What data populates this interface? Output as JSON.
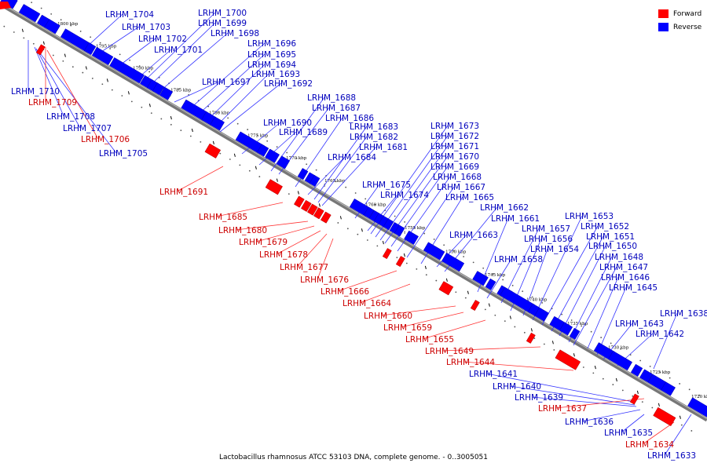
{
  "title": "Lactobacillus rhamnosus ATCC 53103 DNA, complete genome. - 0..3005051",
  "legend": {
    "forward_label": "Forward",
    "reverse_label": "Reverse",
    "forward_color": "#ff0000",
    "reverse_color": "#0000ff"
  },
  "colors": {
    "forward": "#ff0000",
    "forward_line": "#ff3333",
    "forward_text": "#cc0000",
    "reverse": "#0000ff",
    "reverse_line": "#3333ff",
    "reverse_text": "#0000bb",
    "axis": "#777777"
  },
  "scale": {
    "unit": "kbp",
    "range_kbp": [
      1720,
      1800
    ],
    "ticks": [
      "1800 kbp",
      "1795 kbp",
      "1790 kbp",
      "1785 kbp",
      "1780 kbp",
      "1775 kbp",
      "1770 kbp",
      "1765 kbp",
      "1760 kbp",
      "1755 kbp",
      "1750 kbp",
      "1745 kbp",
      "1740 kbp",
      "1735 kbp",
      "1730 kbp",
      "1725 kbp",
      "1720 kbp"
    ]
  },
  "genes_reverse": [
    "LRHM_1710",
    "LRHM_1708",
    "LRHM_1707",
    "LRHM_1705",
    "LRHM_1704",
    "LRHM_1703",
    "LRHM_1702",
    "LRHM_1701",
    "LRHM_1700",
    "LRHM_1699",
    "LRHM_1698",
    "LRHM_1697",
    "LRHM_1696",
    "LRHM_1695",
    "LRHM_1694",
    "LRHM_1693",
    "LRHM_1692",
    "LRHM_1690",
    "LRHM_1689",
    "LRHM_1688",
    "LRHM_1687",
    "LRHM_1686",
    "LRHM_1684",
    "LRHM_1683",
    "LRHM_1682",
    "LRHM_1681",
    "LRHM_1675",
    "LRHM_1674",
    "LRHM_1673",
    "LRHM_1672",
    "LRHM_1671",
    "LRHM_1670",
    "LRHM_1669",
    "LRHM_1668",
    "LRHM_1667",
    "LRHM_1665",
    "LRHM_1663",
    "LRHM_1662",
    "LRHM_1661",
    "LRHM_1658",
    "LRHM_1657",
    "LRHM_1656",
    "LRHM_1654",
    "LRHM_1653",
    "LRHM_1652",
    "LRHM_1651",
    "LRHM_1650",
    "LRHM_1648",
    "LRHM_1647",
    "LRHM_1646",
    "LRHM_1645",
    "LRHM_1643",
    "LRHM_1642",
    "LRHM_1641",
    "LRHM_1640",
    "LRHM_1639",
    "LRHM_1638",
    "LRHM_1636",
    "LRHM_1635",
    "LRHM_1633"
  ],
  "genes_forward": [
    "LRHM_1709",
    "LRHM_1706",
    "LRHM_1691",
    "LRHM_1685",
    "LRHM_1680",
    "LRHM_1679",
    "LRHM_1678",
    "LRHM_1677",
    "LRHM_1676",
    "LRHM_1666",
    "LRHM_1664",
    "LRHM_1660",
    "LRHM_1659",
    "LRHM_1655",
    "LRHM_1649",
    "LRHM_1644",
    "LRHM_1637",
    "LRHM_1634"
  ]
}
